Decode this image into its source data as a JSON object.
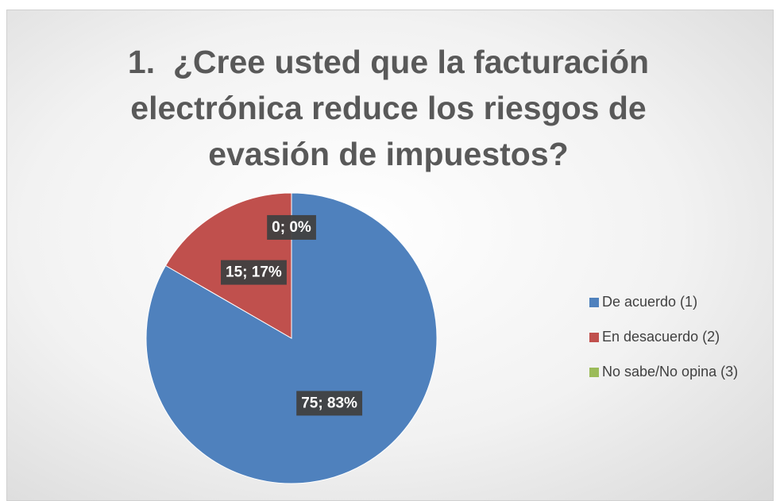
{
  "chart_data": {
    "type": "pie",
    "title": "1.  ¿Cree usted que la facturación electrónica reduce los riesgos de evasión de impuestos?",
    "categories": [
      "De acuerdo (1)",
      "En desacuerdo (2)",
      "No sabe/No opina (3)"
    ],
    "values": [
      75,
      15,
      0
    ],
    "value_labels": [
      "75; 83%",
      "15; 17%",
      "0; 0%"
    ],
    "colors": [
      "#4f81bd",
      "#c0504d",
      "#9bbb59"
    ],
    "legend": "right"
  }
}
